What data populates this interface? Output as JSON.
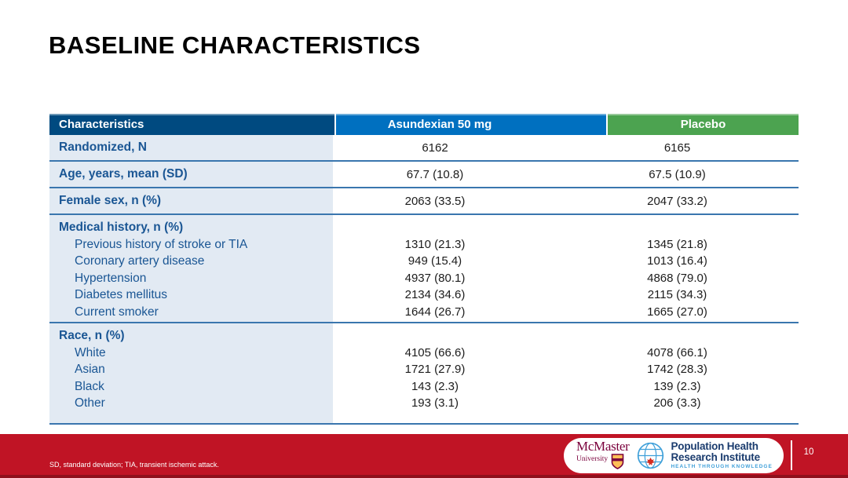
{
  "slide": {
    "title": "BASELINE CHARACTERISTICS",
    "footnote": "SD, standard deviation; TIA, transient ischemic attack.",
    "page_number": "10"
  },
  "table": {
    "columns": [
      "Characteristics",
      "Asundexian 50 mg",
      "Placebo"
    ],
    "sections": [
      {
        "type": "row",
        "label": "Randomized, N",
        "values": [
          "6162",
          "6165"
        ]
      },
      {
        "type": "row",
        "label": "Age, years, mean (SD)",
        "values": [
          "67.7 (10.8)",
          "67.5 (10.9)"
        ]
      },
      {
        "type": "row",
        "label": "Female sex, n (%)",
        "values": [
          "2063 (33.5)",
          "2047 (33.2)"
        ]
      },
      {
        "type": "group",
        "label": "Medical history, n (%)",
        "items": [
          {
            "label": "Previous history of stroke or TIA",
            "values": [
              "1310 (21.3)",
              "1345 (21.8)"
            ]
          },
          {
            "label": "Coronary artery disease",
            "values": [
              "949 (15.4)",
              "1013 (16.4)"
            ]
          },
          {
            "label": "Hypertension",
            "values": [
              "4937 (80.1)",
              "4868 (79.0)"
            ]
          },
          {
            "label": "Diabetes mellitus",
            "values": [
              "2134 (34.6)",
              "2115 (34.3)"
            ]
          },
          {
            "label": "Current smoker",
            "values": [
              "1644 (26.7)",
              "1665 (27.0)"
            ]
          }
        ]
      },
      {
        "type": "group",
        "label": "Race, n (%)",
        "items": [
          {
            "label": "White",
            "values": [
              "4105 (66.6)",
              "4078 (66.1)"
            ]
          },
          {
            "label": "Asian",
            "values": [
              "1721 (27.9)",
              "1742 (28.3)"
            ]
          },
          {
            "label": "Black",
            "values": [
              "143 (2.3)",
              "139 (2.3)"
            ]
          },
          {
            "label": "Other",
            "values": [
              "193 (3.1)",
              "206 (3.3)"
            ]
          }
        ]
      }
    ]
  },
  "footer": {
    "mcmaster": {
      "line1": "McMaster",
      "line2": "University"
    },
    "phri": {
      "line1": "Population Health",
      "line2": "Research Institute",
      "tagline": "HEALTH THROUGH KNOWLEDGE"
    }
  },
  "colors": {
    "accent_red": "#C01425",
    "accent_red_dark": "#8F101C",
    "header_navy": "#004A80",
    "asundexian_blue": "#0070C0",
    "placebo_green": "#4CA350",
    "label_blue": "#1A5694",
    "row_band_bg": "#E2EAF3",
    "divider_blue": "#3A76AE",
    "mcmaster_maroon": "#7A003C",
    "crest_gold": "#FDBF57",
    "phri_navy": "#1B3C6E",
    "phri_light_blue": "#3FA0D9"
  }
}
